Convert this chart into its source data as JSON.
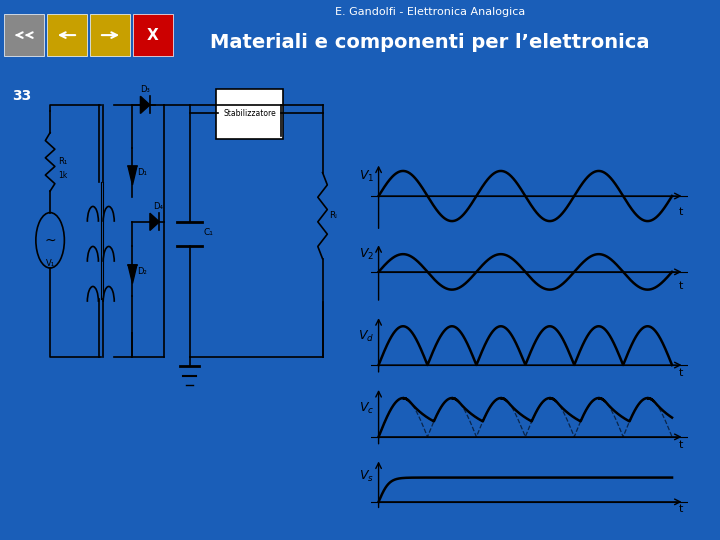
{
  "title_top": "E. Gandolfi - Elettronica Analogica",
  "title_main": "Materiali e componenti per l’elettronica",
  "slide_number": "33",
  "bg_blue": "#1a5eb8",
  "bg_light_blue": "#b8e0f0",
  "bg_light_green": "#d8f5d0",
  "header_bg": "#1a5eb8",
  "red_line_color": "#cc0000",
  "title_color": "#ffffff",
  "number_color": "#ffffff",
  "wave_color": "#000000",
  "nav_gray": "#888888",
  "nav_gold": "#c8a000",
  "nav_red": "#cc0000"
}
